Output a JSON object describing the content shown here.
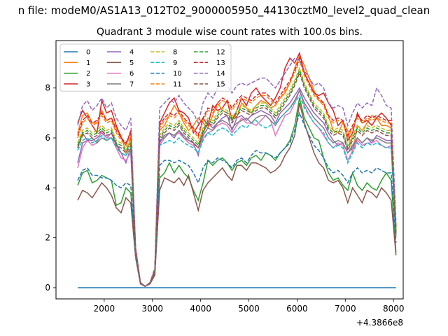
{
  "page": {
    "suptitle": "n file: modeM0/AS1A13_012T02_9000005950_44130cztM0_level2_quad_clean",
    "title": "Quadrant 3 module wise count rates with 100.0s bins."
  },
  "chart_data": {
    "type": "line",
    "title": "Quadrant 3 module wise count rates with 100.0s bins.",
    "xlabel": "",
    "ylabel": "",
    "x_offset_label": "+4.3866e8",
    "xlim": [
      1000,
      8200
    ],
    "ylim": [
      -0.45,
      9.9
    ],
    "xticks": [
      2000,
      3000,
      4000,
      5000,
      6000,
      7000,
      8000
    ],
    "yticks": [
      0,
      2,
      4,
      6,
      8
    ],
    "legend": {
      "placement": "top-left",
      "columns": 4
    },
    "x": [
      1450,
      1550,
      1650,
      1750,
      1850,
      1950,
      2050,
      2150,
      2250,
      2350,
      2450,
      2550,
      2650,
      2750,
      2850,
      2950,
      3050,
      3150,
      3250,
      3350,
      3450,
      3550,
      3650,
      3750,
      3850,
      3950,
      4050,
      4150,
      4250,
      4350,
      4450,
      4550,
      4650,
      4750,
      4850,
      4950,
      5050,
      5150,
      5250,
      5350,
      5450,
      5550,
      5650,
      5750,
      5850,
      5950,
      6050,
      6150,
      6250,
      6350,
      6450,
      6550,
      6650,
      6750,
      6850,
      6950,
      7050,
      7150,
      7250,
      7350,
      7450,
      7550,
      7650,
      7750,
      7850,
      7950,
      8050
    ],
    "series": [
      {
        "name": "0",
        "color": "#1f77b4",
        "dash": false,
        "values": [
          0,
          0,
          0,
          0,
          0,
          0,
          0,
          0,
          0,
          0,
          0,
          0,
          0,
          0,
          0,
          0,
          0,
          0,
          0,
          0,
          0,
          0,
          0,
          0,
          0,
          0,
          0,
          0,
          0,
          0,
          0,
          0,
          0,
          0,
          0,
          0,
          0,
          0,
          0,
          0,
          0,
          0,
          0,
          0,
          0,
          0,
          0,
          0,
          0,
          0,
          0,
          0,
          0,
          0,
          0,
          0,
          0,
          0,
          0,
          0,
          0,
          0,
          0,
          0,
          0,
          0,
          0
        ]
      },
      {
        "name": "1",
        "color": "#ff7f0e",
        "dash": false,
        "values": [
          6.2,
          6.9,
          7.0,
          6.6,
          6.6,
          7.1,
          6.7,
          6.8,
          6.4,
          6.1,
          5.4,
          6.0,
          1.4,
          0.2,
          0.05,
          0.2,
          0.7,
          6.3,
          6.5,
          6.9,
          7.3,
          7.0,
          6.6,
          6.3,
          6.5,
          6.8,
          6.6,
          6.4,
          6.9,
          7.4,
          7.1,
          7.0,
          6.9,
          6.8,
          7.4,
          7.2,
          7.0,
          7.3,
          7.5,
          7.4,
          7.2,
          7.3,
          7.6,
          7.8,
          8.2,
          8.8,
          9.3,
          8.9,
          8.4,
          7.9,
          7.5,
          7.4,
          6.9,
          6.3,
          6.2,
          6.6,
          6.3,
          5.4,
          6.5,
          6.3,
          6.6,
          6.9,
          6.8,
          6.5,
          6.5,
          6.4,
          2.3
        ]
      },
      {
        "name": "2",
        "color": "#2ca02c",
        "dash": false,
        "values": [
          4.1,
          4.6,
          4.7,
          4.2,
          4.3,
          4.5,
          4.4,
          4.3,
          3.3,
          3.4,
          4.0,
          3.8,
          1.5,
          0.2,
          0.05,
          0.2,
          0.6,
          4.4,
          4.6,
          5.0,
          4.6,
          4.9,
          4.6,
          4.4,
          3.9,
          3.5,
          4.2,
          5.1,
          4.9,
          5.1,
          5.2,
          5.0,
          4.7,
          5.0,
          5.1,
          4.9,
          5.2,
          5.3,
          5.1,
          5.4,
          5.3,
          5.1,
          5.4,
          5.6,
          5.9,
          6.5,
          7.6,
          6.8,
          6.4,
          6.0,
          5.9,
          5.2,
          4.6,
          4.3,
          4.4,
          4.1,
          3.9,
          4.6,
          4.1,
          3.9,
          4.2,
          4.0,
          3.9,
          4.3,
          4.6,
          4.3,
          1.4
        ]
      },
      {
        "name": "3",
        "color": "#d62728",
        "dash": false,
        "values": [
          6.6,
          7.1,
          6.8,
          6.5,
          6.2,
          7.5,
          7.0,
          7.1,
          6.5,
          6.0,
          5.7,
          6.3,
          1.6,
          0.2,
          0.05,
          0.2,
          0.7,
          6.6,
          7.0,
          7.4,
          7.6,
          7.1,
          7.0,
          6.8,
          6.2,
          6.5,
          6.8,
          6.5,
          7.3,
          7.1,
          7.2,
          7.5,
          6.7,
          7.1,
          7.6,
          7.3,
          7.8,
          8.0,
          7.7,
          7.5,
          7.3,
          7.6,
          8.0,
          8.8,
          9.2,
          9.0,
          9.4,
          8.6,
          8.2,
          7.8,
          7.7,
          7.8,
          7.4,
          7.1,
          6.5,
          6.7,
          5.9,
          6.2,
          7.0,
          6.6,
          6.7,
          6.5,
          6.8,
          7.0,
          6.8,
          6.5,
          2.4
        ]
      },
      {
        "name": "4",
        "color": "#9467bd",
        "dash": false,
        "values": [
          5.0,
          5.8,
          5.9,
          5.9,
          6.0,
          6.2,
          6.0,
          6.2,
          5.7,
          5.4,
          5.0,
          5.6,
          1.3,
          0.2,
          0.05,
          0.2,
          0.6,
          5.8,
          6.1,
          6.2,
          6.0,
          6.3,
          6.1,
          5.9,
          5.8,
          5.3,
          6.2,
          6.6,
          6.4,
          6.6,
          6.8,
          6.9,
          6.3,
          6.8,
          6.9,
          6.7,
          6.9,
          7.0,
          7.1,
          7.0,
          6.9,
          6.6,
          7.0,
          7.2,
          7.4,
          7.7,
          8.0,
          7.6,
          7.3,
          7.0,
          6.8,
          6.6,
          6.2,
          5.9,
          5.7,
          5.8,
          5.4,
          5.6,
          6.0,
          5.8,
          6.0,
          5.8,
          6.1,
          6.0,
          5.9,
          5.9,
          2.1
        ]
      },
      {
        "name": "5",
        "color": "#8c564b",
        "dash": false,
        "values": [
          3.5,
          3.9,
          3.8,
          3.6,
          3.9,
          4.2,
          4.0,
          3.7,
          3.2,
          3.0,
          3.6,
          3.4,
          1.2,
          0.15,
          0.05,
          0.15,
          0.5,
          3.9,
          4.4,
          4.3,
          4.2,
          4.4,
          4.1,
          4.5,
          3.8,
          3.1,
          3.9,
          4.2,
          4.4,
          4.6,
          4.8,
          4.5,
          4.3,
          4.9,
          4.9,
          4.7,
          5.0,
          5.0,
          4.9,
          4.8,
          4.6,
          4.7,
          4.9,
          5.3,
          5.6,
          6.1,
          7.4,
          6.6,
          6.0,
          5.4,
          5.0,
          4.8,
          4.3,
          4.2,
          4.3,
          4.0,
          3.4,
          4.0,
          3.7,
          3.4,
          3.9,
          3.8,
          3.6,
          4.0,
          3.8,
          3.5,
          1.3
        ]
      },
      {
        "name": "6",
        "color": "#e377c2",
        "dash": false,
        "values": [
          4.8,
          5.6,
          5.9,
          5.7,
          5.8,
          6.3,
          6.0,
          6.0,
          5.6,
          5.2,
          5.1,
          5.4,
          1.3,
          0.2,
          0.05,
          0.2,
          0.6,
          5.7,
          6.0,
          6.2,
          6.1,
          6.2,
          6.0,
          5.8,
          5.7,
          5.4,
          6.0,
          6.2,
          6.3,
          6.5,
          6.6,
          6.5,
          6.2,
          6.5,
          6.8,
          6.6,
          6.6,
          6.5,
          6.7,
          6.9,
          6.7,
          6.1,
          6.5,
          6.9,
          7.0,
          7.4,
          7.9,
          7.3,
          6.9,
          6.6,
          6.4,
          6.1,
          5.8,
          5.6,
          5.8,
          5.7,
          5.1,
          5.5,
          5.9,
          5.7,
          5.8,
          5.8,
          5.9,
          5.7,
          5.6,
          5.7,
          2.1
        ]
      },
      {
        "name": "7",
        "color": "#7f7f7f",
        "dash": false,
        "values": [
          5.6,
          6.2,
          5.9,
          6.0,
          5.8,
          6.0,
          5.9,
          6.0,
          5.8,
          5.4,
          5.3,
          5.6,
          1.3,
          0.2,
          0.05,
          0.2,
          0.6,
          5.9,
          6.0,
          6.2,
          6.1,
          6.3,
          6.0,
          5.9,
          5.8,
          5.6,
          6.1,
          6.4,
          6.3,
          6.6,
          6.7,
          6.6,
          6.4,
          6.6,
          6.7,
          6.8,
          6.6,
          6.8,
          6.9,
          6.9,
          6.7,
          6.5,
          6.8,
          7.0,
          7.2,
          7.5,
          7.9,
          7.4,
          7.1,
          6.8,
          6.6,
          6.4,
          6.0,
          5.8,
          5.9,
          5.8,
          5.4,
          5.7,
          6.0,
          5.8,
          6.0,
          5.9,
          6.0,
          5.9,
          5.8,
          5.8,
          2.1
        ]
      },
      {
        "name": "8",
        "color": "#bcbd22",
        "dash": true,
        "values": [
          5.8,
          6.3,
          6.4,
          6.2,
          6.3,
          6.5,
          6.3,
          6.4,
          5.9,
          5.8,
          5.6,
          5.9,
          1.4,
          0.2,
          0.05,
          0.2,
          0.7,
          6.1,
          6.4,
          6.6,
          6.5,
          6.7,
          6.4,
          6.2,
          6.0,
          5.8,
          6.4,
          6.8,
          6.7,
          7.0,
          7.2,
          7.1,
          6.8,
          7.1,
          7.3,
          7.2,
          7.1,
          7.3,
          7.4,
          7.4,
          7.2,
          7.0,
          7.3,
          7.6,
          7.9,
          8.3,
          8.8,
          8.2,
          7.8,
          7.4,
          7.2,
          7.0,
          6.5,
          6.3,
          6.4,
          6.3,
          5.7,
          6.1,
          6.5,
          6.3,
          6.5,
          6.4,
          6.5,
          6.4,
          6.3,
          6.3,
          2.3
        ]
      },
      {
        "name": "9",
        "color": "#17becf",
        "dash": true,
        "values": [
          5.5,
          5.9,
          6.0,
          5.8,
          5.9,
          6.1,
          5.9,
          6.0,
          5.6,
          5.4,
          5.3,
          5.6,
          1.3,
          0.2,
          0.05,
          0.2,
          0.6,
          5.7,
          5.8,
          5.9,
          5.8,
          6.0,
          5.8,
          5.7,
          5.6,
          5.4,
          5.9,
          6.2,
          6.1,
          6.3,
          6.4,
          6.3,
          6.1,
          6.3,
          6.5,
          6.4,
          6.6,
          6.7,
          6.5,
          6.4,
          6.5,
          6.6,
          6.8,
          7.0,
          7.2,
          7.4,
          7.7,
          7.2,
          6.9,
          6.6,
          6.4,
          6.2,
          5.8,
          5.6,
          5.7,
          5.6,
          5.0,
          5.4,
          5.8,
          5.6,
          5.8,
          5.7,
          5.8,
          5.7,
          5.6,
          5.6,
          2.0
        ]
      },
      {
        "name": "10",
        "color": "#1f77b4",
        "dash": true,
        "values": [
          4.3,
          4.7,
          4.8,
          4.5,
          4.5,
          4.4,
          4.4,
          4.3,
          4.1,
          4.0,
          4.2,
          4.1,
          1.3,
          0.2,
          0.05,
          0.2,
          0.6,
          4.9,
          5.1,
          5.1,
          5.0,
          5.1,
          5.0,
          4.9,
          4.6,
          4.2,
          4.8,
          5.1,
          5.0,
          5.2,
          5.1,
          5.0,
          4.8,
          5.1,
          5.2,
          5.0,
          5.3,
          5.5,
          5.4,
          5.4,
          5.3,
          5.2,
          5.4,
          5.6,
          5.8,
          6.3,
          7.0,
          6.5,
          6.1,
          5.7,
          5.5,
          5.2,
          4.8,
          4.6,
          4.7,
          4.5,
          4.2,
          4.6,
          4.8,
          4.6,
          4.7,
          4.6,
          4.8,
          4.7,
          4.6,
          4.6,
          1.8
        ]
      },
      {
        "name": "11",
        "color": "#ff7f0e",
        "dash": true,
        "values": [
          6.0,
          6.6,
          6.8,
          6.5,
          6.6,
          6.9,
          6.6,
          6.7,
          6.2,
          5.9,
          5.7,
          6.1,
          1.5,
          0.2,
          0.05,
          0.2,
          0.7,
          6.4,
          6.7,
          6.9,
          6.8,
          7.0,
          6.7,
          6.5,
          6.3,
          6.0,
          6.7,
          7.1,
          7.0,
          7.3,
          7.5,
          7.4,
          7.1,
          7.4,
          7.6,
          7.5,
          7.4,
          7.6,
          7.7,
          7.7,
          7.5,
          7.3,
          7.6,
          7.9,
          8.2,
          8.6,
          9.1,
          8.5,
          8.1,
          7.7,
          7.5,
          7.3,
          6.8,
          6.6,
          6.7,
          6.6,
          6.0,
          6.4,
          6.8,
          6.6,
          6.8,
          6.7,
          6.8,
          6.7,
          6.6,
          6.6,
          2.4
        ]
      },
      {
        "name": "12",
        "color": "#2ca02c",
        "dash": true,
        "values": [
          5.7,
          6.2,
          6.3,
          6.1,
          6.2,
          6.4,
          6.2,
          6.3,
          5.8,
          5.7,
          5.5,
          5.8,
          1.4,
          0.2,
          0.05,
          0.2,
          0.7,
          6.0,
          6.3,
          6.5,
          6.4,
          6.6,
          6.3,
          6.1,
          5.9,
          5.7,
          6.3,
          6.7,
          6.6,
          6.9,
          7.1,
          7.0,
          6.7,
          7.0,
          7.2,
          7.1,
          7.0,
          7.2,
          7.3,
          7.3,
          7.1,
          6.9,
          7.2,
          7.5,
          7.8,
          8.2,
          8.7,
          8.1,
          7.7,
          7.3,
          7.1,
          6.9,
          6.4,
          6.2,
          6.3,
          6.2,
          5.6,
          6.0,
          6.4,
          6.2,
          6.4,
          6.3,
          6.4,
          6.3,
          6.2,
          6.2,
          2.2
        ]
      },
      {
        "name": "13",
        "color": "#d62728",
        "dash": true,
        "values": [
          6.1,
          6.7,
          6.9,
          6.6,
          6.7,
          7.0,
          6.7,
          6.8,
          6.3,
          6.0,
          5.8,
          6.2,
          1.5,
          0.2,
          0.05,
          0.2,
          0.7,
          6.5,
          6.8,
          7.0,
          6.9,
          7.1,
          6.8,
          6.6,
          6.4,
          6.1,
          6.8,
          7.2,
          7.1,
          7.4,
          7.6,
          7.5,
          7.2,
          7.5,
          7.7,
          7.6,
          7.5,
          7.7,
          7.8,
          7.8,
          7.6,
          7.4,
          7.7,
          8.0,
          8.3,
          8.7,
          9.2,
          8.6,
          8.2,
          7.8,
          7.6,
          7.4,
          6.9,
          6.7,
          6.8,
          6.7,
          6.1,
          6.5,
          6.9,
          6.7,
          6.9,
          6.8,
          6.9,
          6.8,
          6.7,
          6.7,
          2.4
        ]
      },
      {
        "name": "14",
        "color": "#9467bd",
        "dash": true,
        "values": [
          6.5,
          7.3,
          7.5,
          7.1,
          7.3,
          7.6,
          7.2,
          7.4,
          6.8,
          6.5,
          6.3,
          6.8,
          1.6,
          0.2,
          0.05,
          0.2,
          0.8,
          7.2,
          7.4,
          7.6,
          7.4,
          7.7,
          7.4,
          7.2,
          7.0,
          6.6,
          7.4,
          7.8,
          7.6,
          8.0,
          8.2,
          8.1,
          7.8,
          8.1,
          8.2,
          8.1,
          8.2,
          8.3,
          8.4,
          8.4,
          8.2,
          8.0,
          8.3,
          8.6,
          8.9,
          9.2,
          9.1,
          8.7,
          8.4,
          8.1,
          8.2,
          8.0,
          7.4,
          7.2,
          7.3,
          7.2,
          6.5,
          7.0,
          7.4,
          7.2,
          7.4,
          7.3,
          8.0,
          7.7,
          7.3,
          7.2,
          2.6
        ]
      },
      {
        "name": "15",
        "color": "#8c564b",
        "dash": true,
        "values": [
          5.6,
          6.1,
          6.2,
          6.0,
          6.1,
          6.3,
          6.1,
          6.2,
          5.7,
          5.6,
          5.4,
          5.7,
          1.4,
          0.2,
          0.05,
          0.2,
          0.6,
          5.9,
          6.2,
          6.4,
          6.3,
          6.5,
          6.2,
          6.0,
          5.8,
          5.6,
          6.2,
          6.6,
          6.5,
          6.8,
          7.0,
          6.9,
          6.6,
          6.9,
          7.1,
          7.0,
          6.9,
          7.1,
          7.2,
          7.2,
          7.0,
          6.8,
          7.1,
          7.4,
          7.7,
          8.1,
          8.6,
          8.0,
          7.6,
          7.2,
          7.0,
          6.8,
          6.3,
          6.1,
          6.2,
          6.1,
          5.5,
          5.9,
          6.3,
          6.1,
          6.3,
          6.2,
          6.3,
          6.2,
          6.1,
          6.1,
          2.2
        ]
      }
    ]
  }
}
